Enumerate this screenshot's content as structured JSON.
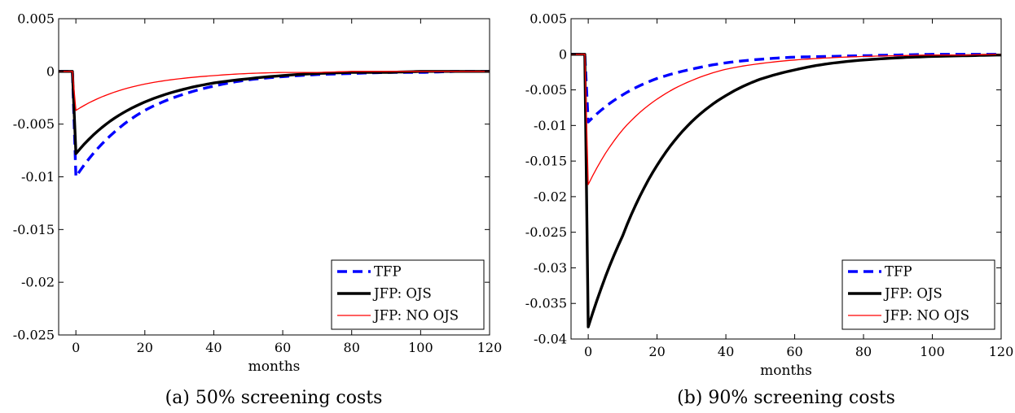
{
  "chart_data": [
    {
      "type": "line",
      "panel_label": "(a)",
      "caption": "50% screening costs",
      "xlabel": "months",
      "ylabel": "",
      "xlim": [
        -5,
        120
      ],
      "ylim": [
        -0.025,
        0.005
      ],
      "xticks": [
        0,
        20,
        40,
        60,
        80,
        100,
        120
      ],
      "xtick_labels": [
        "0",
        "20",
        "40",
        "60",
        "80",
        "100",
        "120"
      ],
      "yticks": [
        0.005,
        0,
        -0.005,
        -0.01,
        -0.015,
        -0.02,
        -0.025
      ],
      "ytick_labels": [
        "0.005",
        "0",
        "-0.005",
        "-0.01",
        "-0.015",
        "-0.02",
        "-0.025"
      ],
      "legend_position": "bottom-right",
      "series": [
        {
          "name": "TFP",
          "color": "#0000ff",
          "style": "dashed",
          "x": [
            -5,
            -1,
            0,
            10,
            20,
            30,
            40,
            50,
            60,
            70,
            80,
            90,
            100,
            110,
            120
          ],
          "y": [
            0,
            0,
            -0.01,
            -0.0061,
            -0.0037,
            -0.0023,
            -0.0014,
            -0.0008,
            -0.0005,
            -0.0003,
            -0.0002,
            -0.0001,
            -0.0001,
            0,
            0
          ]
        },
        {
          "name": "JFP: OJS",
          "color": "#000000",
          "style": "solid-thick",
          "x": [
            -5,
            -1,
            0,
            10,
            20,
            30,
            40,
            50,
            60,
            70,
            80,
            90,
            100,
            110,
            120
          ],
          "y": [
            0,
            0,
            -0.0078,
            -0.0047,
            -0.0029,
            -0.0018,
            -0.0011,
            -0.0007,
            -0.0004,
            -0.0002,
            -0.0001,
            -0.0001,
            0,
            0,
            0
          ]
        },
        {
          "name": "JFP: NO OJS",
          "color": "#ff0000",
          "style": "solid-thin",
          "x": [
            -5,
            -1,
            0,
            10,
            20,
            30,
            40,
            50,
            60,
            70,
            80,
            90,
            100,
            110,
            120
          ],
          "y": [
            0,
            0,
            -0.0037,
            -0.0021,
            -0.0012,
            -0.0007,
            -0.0004,
            -0.0002,
            -0.0001,
            -0.0001,
            0,
            0,
            0,
            0,
            0
          ]
        }
      ]
    },
    {
      "type": "line",
      "panel_label": "(b)",
      "caption": "90% screening costs",
      "xlabel": "months",
      "ylabel": "",
      "xlim": [
        -5,
        120
      ],
      "ylim": [
        -0.04,
        0.005
      ],
      "xticks": [
        0,
        20,
        40,
        60,
        80,
        100,
        120
      ],
      "xtick_labels": [
        "0",
        "20",
        "40",
        "60",
        "80",
        "100",
        "120"
      ],
      "yticks": [
        0.005,
        0,
        -0.005,
        -0.01,
        -0.015,
        -0.02,
        -0.025,
        -0.03,
        -0.035,
        -0.04
      ],
      "ytick_labels": [
        "0.005",
        "0",
        "-0.005",
        "-0.01",
        "-0.015",
        "-0.02",
        "-0.025",
        "-0.03",
        "-0.035",
        "-0.04"
      ],
      "legend_position": "bottom-right",
      "series": [
        {
          "name": "TFP",
          "color": "#0000ff",
          "style": "dashed",
          "x": [
            -5,
            -1,
            0,
            10,
            20,
            30,
            40,
            50,
            60,
            70,
            80,
            90,
            100,
            110,
            120
          ],
          "y": [
            0,
            0,
            -0.0095,
            -0.0057,
            -0.0034,
            -0.0021,
            -0.0012,
            -0.0007,
            -0.0004,
            -0.0003,
            -0.0002,
            -0.0001,
            0,
            0,
            0
          ]
        },
        {
          "name": "JFP: OJS",
          "color": "#000000",
          "style": "solid-thick",
          "x": [
            -5,
            -1,
            0,
            10,
            20,
            30,
            40,
            50,
            60,
            70,
            80,
            90,
            100,
            110,
            120
          ],
          "y": [
            0,
            0,
            -0.0383,
            -0.0255,
            -0.0156,
            -0.0095,
            -0.0058,
            -0.0035,
            -0.0022,
            -0.0013,
            -0.0008,
            -0.0005,
            -0.0003,
            -0.0002,
            -0.0001
          ]
        },
        {
          "name": "JFP: NO OJS",
          "color": "#ff0000",
          "style": "solid-thin",
          "x": [
            -5,
            -1,
            0,
            10,
            20,
            30,
            40,
            50,
            60,
            70,
            80,
            90,
            100,
            110,
            120
          ],
          "y": [
            0,
            0,
            -0.0183,
            -0.0106,
            -0.0063,
            -0.0037,
            -0.0021,
            -0.0013,
            -0.0008,
            -0.0005,
            -0.0003,
            -0.0002,
            -0.0001,
            -0.0001,
            0
          ]
        }
      ]
    }
  ]
}
